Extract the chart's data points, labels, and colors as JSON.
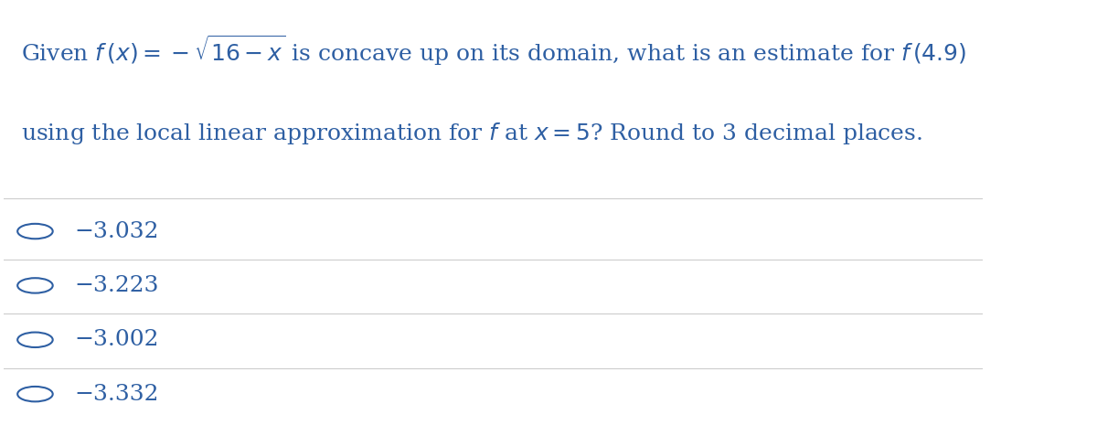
{
  "background_color": "#ffffff",
  "question_line1": "Given $f\\,(x) = -\\sqrt{16 - x}$ is concave up on its domain, what is an estimate for $f\\,(4.9)$",
  "question_line2": "using the local linear approximation for $f$ at $x = 5$? Round to 3 decimal places.",
  "choices": [
    "−3.032",
    "−3.223",
    "−3.002",
    "−3.332"
  ],
  "text_color": "#2e5fa3",
  "choice_text_color": "#2e5fa3",
  "divider_color": "#cccccc",
  "question_fontsize": 18,
  "choice_fontsize": 18,
  "fig_width": 12.0,
  "fig_height": 4.65
}
